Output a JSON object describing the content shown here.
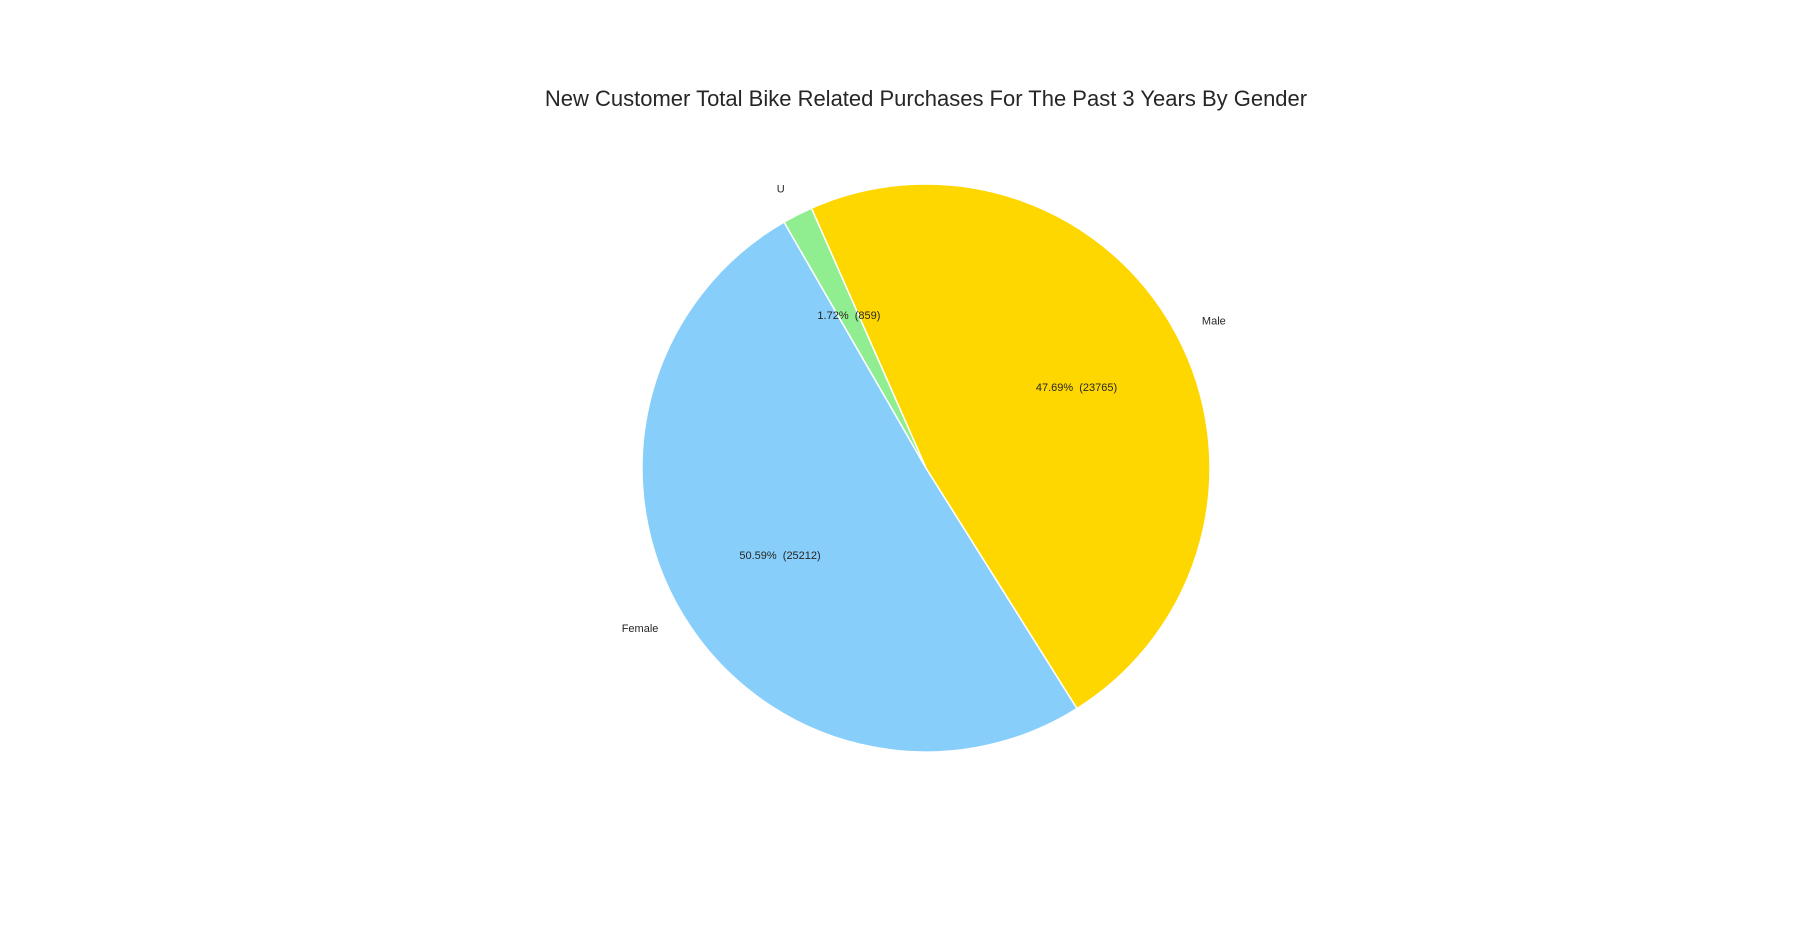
{
  "chart_data": {
    "type": "pie",
    "title": "New Customer Total Bike Related Purchases For The Past 3 Years By Gender",
    "slices": [
      {
        "label": "Female",
        "value": 25212,
        "pct_text": "50.59%  (25212)",
        "color": "#87cefa"
      },
      {
        "label": "Male",
        "value": 23765,
        "pct_text": "47.69%  (23765)",
        "color": "#ffd700"
      },
      {
        "label": "U",
        "value": 859,
        "pct_text": "1.72%  (859)",
        "color": "#90ee90"
      }
    ],
    "start_angle_deg": 120,
    "direction": "counterclockwise",
    "edge_color": "#ffffff"
  }
}
